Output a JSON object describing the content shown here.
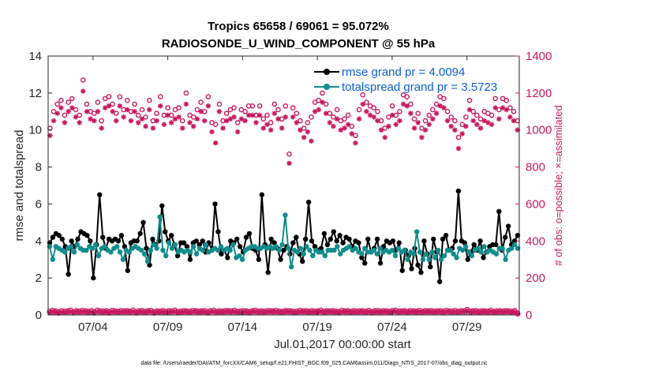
{
  "chart_data": {
    "type": "line",
    "title_line1": "Tropics 65658 / 69061 = 95.072%",
    "title_line2": "RADIOSONDE_U_WIND_COMPONENT @ 55 hPa",
    "xlabel": "Jul.01,2017 00:00:00 start",
    "ylabel": "rmse and totalspread",
    "ylabel_right": "# of obs: o=possible; ×=assimilated",
    "footer": "data file: /Users/raeder/DAI/ATM_forcXX/CAM6_setup/f.e21.FHIST_BGC.f09_025.CAM6assim.011/Diags_NTrS_2017-07/obs_diag_output.nc",
    "x_range": [
      0,
      31.5
    ],
    "ylim": [
      0,
      14
    ],
    "y_ticks": [
      "0",
      "2",
      "4",
      "6",
      "8",
      "10",
      "12",
      "14"
    ],
    "ylim_right": [
      0,
      1400
    ],
    "y_ticks_right": [
      "0",
      "200",
      "400",
      "600",
      "800",
      "1000",
      "1200",
      "1400"
    ],
    "x_ticks": [
      {
        "day": 3,
        "label": "07/04"
      },
      {
        "day": 8,
        "label": "07/09"
      },
      {
        "day": 13,
        "label": "07/14"
      },
      {
        "day": 18,
        "label": "07/19"
      },
      {
        "day": 23,
        "label": "07/24"
      },
      {
        "day": 28,
        "label": "07/29"
      }
    ],
    "legend": {
      "placement": "top-right",
      "entries": [
        "rmse grand pr = 4.0094",
        "totalspread grand pr = 3.5723"
      ]
    },
    "colors": {
      "rmse": "#000000",
      "spread": "#138c8c",
      "obs": "#c8175e",
      "legend_text": "#0b5fd6"
    },
    "rmse": [
      3.9,
      4.2,
      4.4,
      4.3,
      4.1,
      3.7,
      2.2,
      4.0,
      3.7,
      4.1,
      4.5,
      4.4,
      4.3,
      4.0,
      2.0,
      3.8,
      6.5,
      4.2,
      3.6,
      4.1,
      4.0,
      4.1,
      4.0,
      4.3,
      3.7,
      2.4,
      3.9,
      4.0,
      4.0,
      4.4,
      5.0,
      3.6,
      2.7,
      4.1,
      3.8,
      4.0,
      5.9,
      4.5,
      4.0,
      4.3,
      3.8,
      3.2,
      3.9,
      3.9,
      3.7,
      3.0,
      3.9,
      4.0,
      3.8,
      4.0,
      3.4,
      3.9,
      3.5,
      6.0,
      4.5,
      3.3,
      3.5,
      3.1,
      4.0,
      3.9,
      4.1,
      3.7,
      3.4,
      4.2,
      4.4,
      3.6,
      3.5,
      3.0,
      6.5,
      3.8,
      2.3,
      4.1,
      3.9,
      3.6,
      3.0,
      3.5,
      3.7,
      3.3,
      3.9,
      4.2,
      3.3,
      2.9,
      4.1,
      6.1,
      4.0,
      3.7,
      3.5,
      3.6,
      4.4,
      3.8,
      4.1,
      4.5,
      4.0,
      4.3,
      3.9,
      4.2,
      4.1,
      3.7,
      4.0,
      3.9,
      3.1,
      2.8,
      4.1,
      3.4,
      3.6,
      4.1,
      2.8,
      3.7,
      4.0,
      3.9,
      4.0,
      3.5,
      3.9,
      2.4,
      3.5,
      3.2,
      2.5,
      3.6,
      2.7,
      2.3,
      4.0,
      3.3,
      2.6,
      4.1,
      3.4,
      1.8,
      4.1,
      4.3,
      3.5,
      3.6,
      4.0,
      6.7,
      4.0,
      3.9,
      3.0,
      3.4,
      3.8,
      3.5,
      4.0,
      3.1,
      3.4,
      3.7,
      3.8,
      3.8,
      5.6,
      3.5,
      4.2,
      4.8,
      3.8,
      4.0,
      4.3
    ],
    "spread": [
      3.7,
      3.0,
      3.7,
      3.6,
      3.5,
      3.4,
      3.6,
      3.7,
      3.4,
      3.8,
      3.6,
      3.5,
      3.5,
      3.7,
      3.6,
      3.8,
      3.2,
      3.6,
      3.7,
      3.5,
      3.4,
      3.6,
      3.7,
      3.4,
      3.0,
      3.5,
      3.4,
      3.6,
      3.7,
      3.6,
      3.5,
      3.3,
      2.9,
      3.5,
      3.8,
      3.6,
      5.3,
      3.5,
      3.2,
      3.9,
      3.6,
      3.8,
      3.4,
      3.5,
      3.4,
      3.5,
      3.4,
      3.7,
      3.3,
      3.6,
      3.5,
      3.8,
      3.4,
      3.5,
      3.6,
      3.5,
      3.7,
      3.5,
      3.6,
      3.5,
      3.8,
      3.1,
      3.2,
      3.0,
      3.5,
      3.6,
      3.7,
      3.7,
      3.6,
      3.6,
      3.7,
      3.6,
      3.7,
      3.6,
      3.7,
      3.5,
      3.8,
      5.4,
      3.6,
      2.6,
      3.5,
      3.4,
      3.6,
      3.3,
      3.7,
      3.5,
      3.2,
      3.5,
      3.4,
      3.4,
      3.2,
      3.5,
      3.5,
      3.5,
      3.7,
      3.3,
      3.5,
      3.6,
      3.7,
      3.5,
      3.6,
      3.4,
      3.3,
      3.6,
      3.4,
      3.4,
      3.5,
      3.3,
      3.6,
      3.4,
      3.5,
      3.4,
      3.5,
      3.2,
      3.6,
      3.4,
      3.5,
      3.0,
      3.4,
      3.3,
      4.5,
      3.4,
      3.0,
      3.3,
      3.0,
      3.4,
      3.1,
      3.5,
      3.0,
      3.2,
      3.5,
      3.5,
      3.3,
      3.1,
      3.6,
      3.5,
      3.7,
      3.4,
      3.2,
      3.5,
      3.6,
      3.4,
      3.7,
      3.4,
      3.5,
      3.4,
      3.3,
      3.6,
      3.6,
      3.0,
      3.5,
      3.6,
      3.8,
      3.6
    ],
    "obs_possible": [
      1010,
      1100,
      1140,
      1160,
      1080,
      1150,
      1170,
      1110,
      1080,
      1270,
      1140,
      1100,
      1090,
      1150,
      1050,
      1170,
      1180,
      1140,
      1090,
      1180,
      1110,
      1160,
      1100,
      1140,
      1080,
      1110,
      1070,
      1160,
      1050,
      1090,
      1180,
      1080,
      1120,
      1080,
      1110,
      1120,
      1050,
      1200,
      1080,
      1070,
      1110,
      1150,
      1100,
      1180,
      1040,
      1030,
      1140,
      1050,
      1090,
      1110,
      1120,
      1040,
      1110,
      1100,
      1130,
      1130,
      1080,
      1130,
      1060,
      1080,
      1040,
      1140,
      1110,
      1060,
      1130,
      870,
      1120,
      1090,
      1050,
      1010,
      1040,
      1070,
      1150,
      1160,
      1200,
      1140,
      1090,
      1070,
      1110,
      1050,
      1060,
      1080,
      1020,
      970,
      1110,
      1190,
      1150,
      1130,
      1120,
      1100,
      1050,
      1010,
      1070,
      1130,
      1080,
      1100,
      1190,
      1180,
      1140,
      1060,
      1090,
      1010,
      1050,
      1080,
      1110,
      1140,
      1180,
      1170,
      1100,
      1070,
      1050,
      960,
      1030,
      1070,
      1160,
      1100,
      1080,
      1060,
      1100,
      1090,
      1080,
      1170,
      1110,
      1170,
      1160,
      1120,
      1100,
      1050
    ],
    "obs_assim": [
      970,
      1050,
      1090,
      1120,
      1040,
      1100,
      1120,
      1070,
      1040,
      1210,
      1100,
      1060,
      1050,
      1100,
      1010,
      1120,
      1130,
      1100,
      1050,
      1130,
      1070,
      1110,
      1050,
      1100,
      1040,
      1060,
      1020,
      1110,
      1010,
      1050,
      1130,
      1030,
      1080,
      1040,
      1060,
      1070,
      1010,
      1140,
      1040,
      1020,
      1060,
      1100,
      1050,
      1130,
      990,
      930,
      1100,
      1010,
      1050,
      1060,
      1070,
      990,
      1060,
      1050,
      1080,
      1080,
      1040,
      1080,
      1010,
      1030,
      1000,
      1090,
      1060,
      1010,
      1070,
      820,
      1070,
      1040,
      1000,
      960,
      990,
      940,
      1100,
      1110,
      1150,
      1090,
      1040,
      1020,
      1060,
      1000,
      1010,
      1030,
      980,
      930,
      1060,
      1140,
      1100,
      1080,
      1070,
      1050,
      1000,
      960,
      1020,
      1080,
      1030,
      1050,
      1140,
      1130,
      1090,
      1010,
      1040,
      960,
      1000,
      1030,
      1060,
      1090,
      1130,
      1120,
      1050,
      1020,
      1000,
      900,
      980,
      1020,
      1110,
      1050,
      1030,
      1010,
      1050,
      1040,
      1030,
      1120,
      1060,
      1120,
      1110,
      1070,
      1050,
      1000
    ],
    "obs_bottom_possible": [
      20,
      25,
      22,
      18,
      24,
      20,
      22,
      26,
      19,
      23,
      21,
      25,
      22,
      20,
      24,
      18,
      26,
      22,
      21,
      23,
      19,
      25,
      22,
      20,
      24,
      22,
      23,
      21,
      26,
      19,
      22,
      24,
      20,
      23,
      25,
      18,
      22,
      21,
      24,
      20,
      23,
      22,
      26,
      19,
      21,
      24,
      22,
      20,
      25,
      23,
      21,
      22,
      24,
      19,
      23,
      26,
      20,
      22,
      21,
      24,
      23,
      22,
      25,
      20,
      21,
      24,
      22,
      19,
      23,
      26,
      21,
      22,
      20,
      24,
      23,
      22,
      25,
      21,
      20,
      23,
      24,
      22,
      19,
      21,
      25,
      22,
      23,
      20,
      24,
      21,
      22,
      26,
      20,
      23,
      22,
      24,
      21,
      19,
      25,
      22,
      23,
      20,
      24,
      21,
      22,
      23,
      20,
      25,
      19,
      22,
      24,
      21,
      23,
      22,
      20,
      24,
      26,
      21,
      22,
      23,
      20,
      24,
      22,
      21,
      25,
      20,
      23,
      22,
      24,
      21,
      22,
      23,
      20,
      25,
      22,
      21,
      24,
      20,
      23,
      22,
      30,
      21,
      22,
      24,
      20,
      23,
      22,
      21,
      25,
      20,
      22,
      23,
      21,
      24,
      22,
      20,
      23,
      10
    ],
    "obs_bottom_assim": [
      12,
      16,
      14,
      10,
      15,
      12,
      14,
      17,
      11,
      15,
      13,
      16,
      14,
      12,
      15,
      10,
      17,
      14,
      13,
      15,
      11,
      16,
      14,
      12,
      15,
      14,
      15,
      13,
      17,
      11,
      14,
      15,
      12,
      15,
      16,
      10,
      14,
      13,
      15,
      12,
      15,
      14,
      17,
      11,
      13,
      15,
      14,
      12,
      16,
      15,
      13,
      14,
      15,
      11,
      15,
      17,
      12,
      14,
      13,
      15,
      15,
      14,
      16,
      12,
      13,
      15,
      14,
      11,
      15,
      17,
      13,
      14,
      12,
      15,
      15,
      14,
      16,
      13,
      12,
      15,
      15,
      14,
      11,
      13,
      16,
      14,
      15,
      12,
      15,
      13,
      14,
      17,
      12,
      15,
      14,
      15,
      13,
      11,
      16,
      14,
      15,
      12,
      15,
      13,
      14,
      15,
      12,
      16,
      11,
      14,
      15,
      13,
      15,
      14,
      12,
      15,
      17,
      13,
      14,
      15,
      12,
      15,
      14,
      13,
      16,
      12,
      15,
      14,
      15,
      13,
      14,
      15,
      12,
      16,
      14,
      13,
      15,
      12,
      15,
      14,
      22,
      13,
      14,
      15,
      12,
      15,
      14,
      13,
      16,
      12,
      14,
      15,
      13,
      15,
      14,
      12,
      15,
      4
    ]
  }
}
